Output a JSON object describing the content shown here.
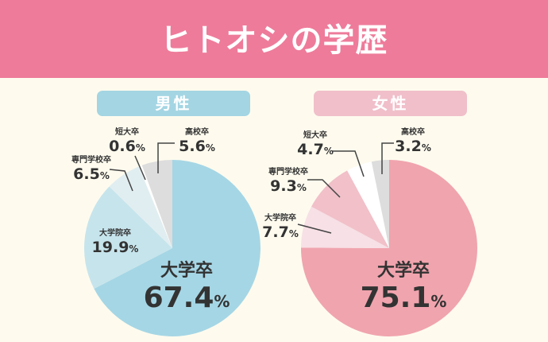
{
  "title": "ヒトオシの学歴",
  "chart_data": [
    {
      "type": "pie",
      "title": "男性",
      "title_color": "#a4d5e3",
      "slices": [
        {
          "label": "大学卒",
          "value": 67.4,
          "color": "#a5d6e5"
        },
        {
          "label": "大学院卒",
          "value": 19.9,
          "color": "#c6e4ec"
        },
        {
          "label": "専門学校卒",
          "value": 6.5,
          "color": "#e1eef1"
        },
        {
          "label": "短大卒",
          "value": 0.6,
          "color": "#ffffff"
        },
        {
          "label": "高校卒",
          "value": 5.6,
          "color": "#dddddd"
        }
      ],
      "value_suffix": "%"
    },
    {
      "type": "pie",
      "title": "女性",
      "title_color": "#f0bfca",
      "slices": [
        {
          "label": "大学卒",
          "value": 75.1,
          "color": "#f0a4ae"
        },
        {
          "label": "大学院卒",
          "value": 7.7,
          "color": "#f7e0e6"
        },
        {
          "label": "専門学校卒",
          "value": 9.3,
          "color": "#f1c0c9"
        },
        {
          "label": "短大卒",
          "value": 4.7,
          "color": "#ffffff"
        },
        {
          "label": "高校卒",
          "value": 3.2,
          "color": "#dddddd"
        }
      ],
      "value_suffix": "%"
    }
  ]
}
